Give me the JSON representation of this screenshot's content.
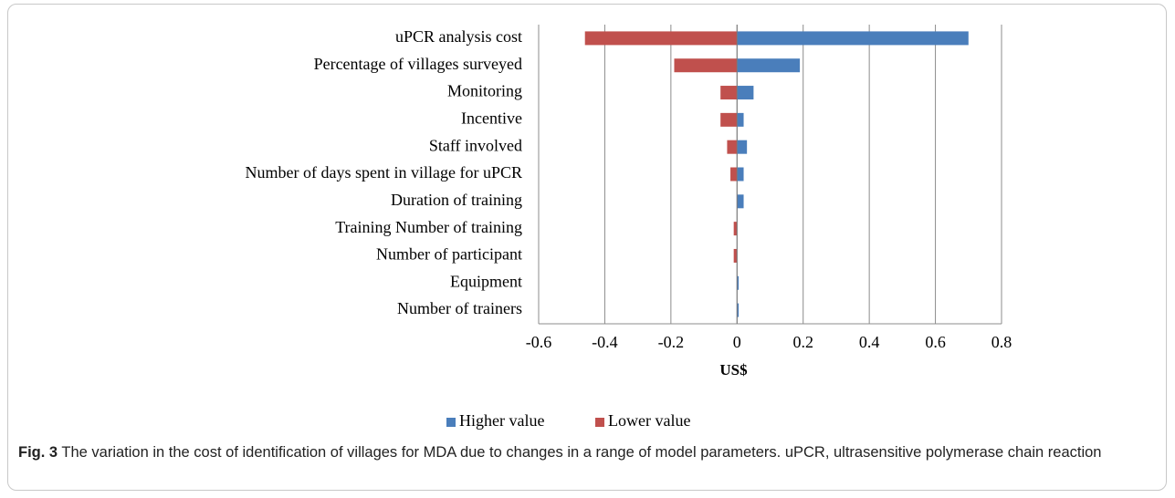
{
  "chart_data": {
    "type": "tornado",
    "categories": [
      "uPCR analysis cost",
      "Percentage of villages surveyed",
      "Monitoring",
      "Incentive",
      "Staff involved",
      "Number of days spent in village for uPCR",
      "Duration of training",
      "Training Number of training",
      "Number of participant",
      "Equipment",
      "Number of trainers"
    ],
    "series": [
      {
        "name": "Higher value",
        "color": "#4a7ebb",
        "values": [
          0.7,
          0.19,
          0.05,
          0.02,
          0.03,
          0.02,
          0.02,
          0,
          0,
          0.005,
          0.005
        ]
      },
      {
        "name": "Lower value",
        "color": "#c0504d",
        "values": [
          -0.46,
          -0.19,
          -0.05,
          -0.05,
          -0.03,
          -0.02,
          0,
          -0.01,
          -0.01,
          0,
          0
        ]
      }
    ],
    "xlim": [
      -0.6,
      0.8
    ],
    "xticks": [
      -0.6,
      -0.4,
      -0.2,
      0,
      0.2,
      0.4,
      0.6,
      0.8
    ],
    "x_label": "US$",
    "grid": true,
    "legend": "bottom",
    "figure_label": "Fig. 3",
    "caption": "The variation in the cost of identification of villages for MDA due to changes in a range of model parameters. uPCR, ultrasensitive polymerase chain reaction"
  }
}
